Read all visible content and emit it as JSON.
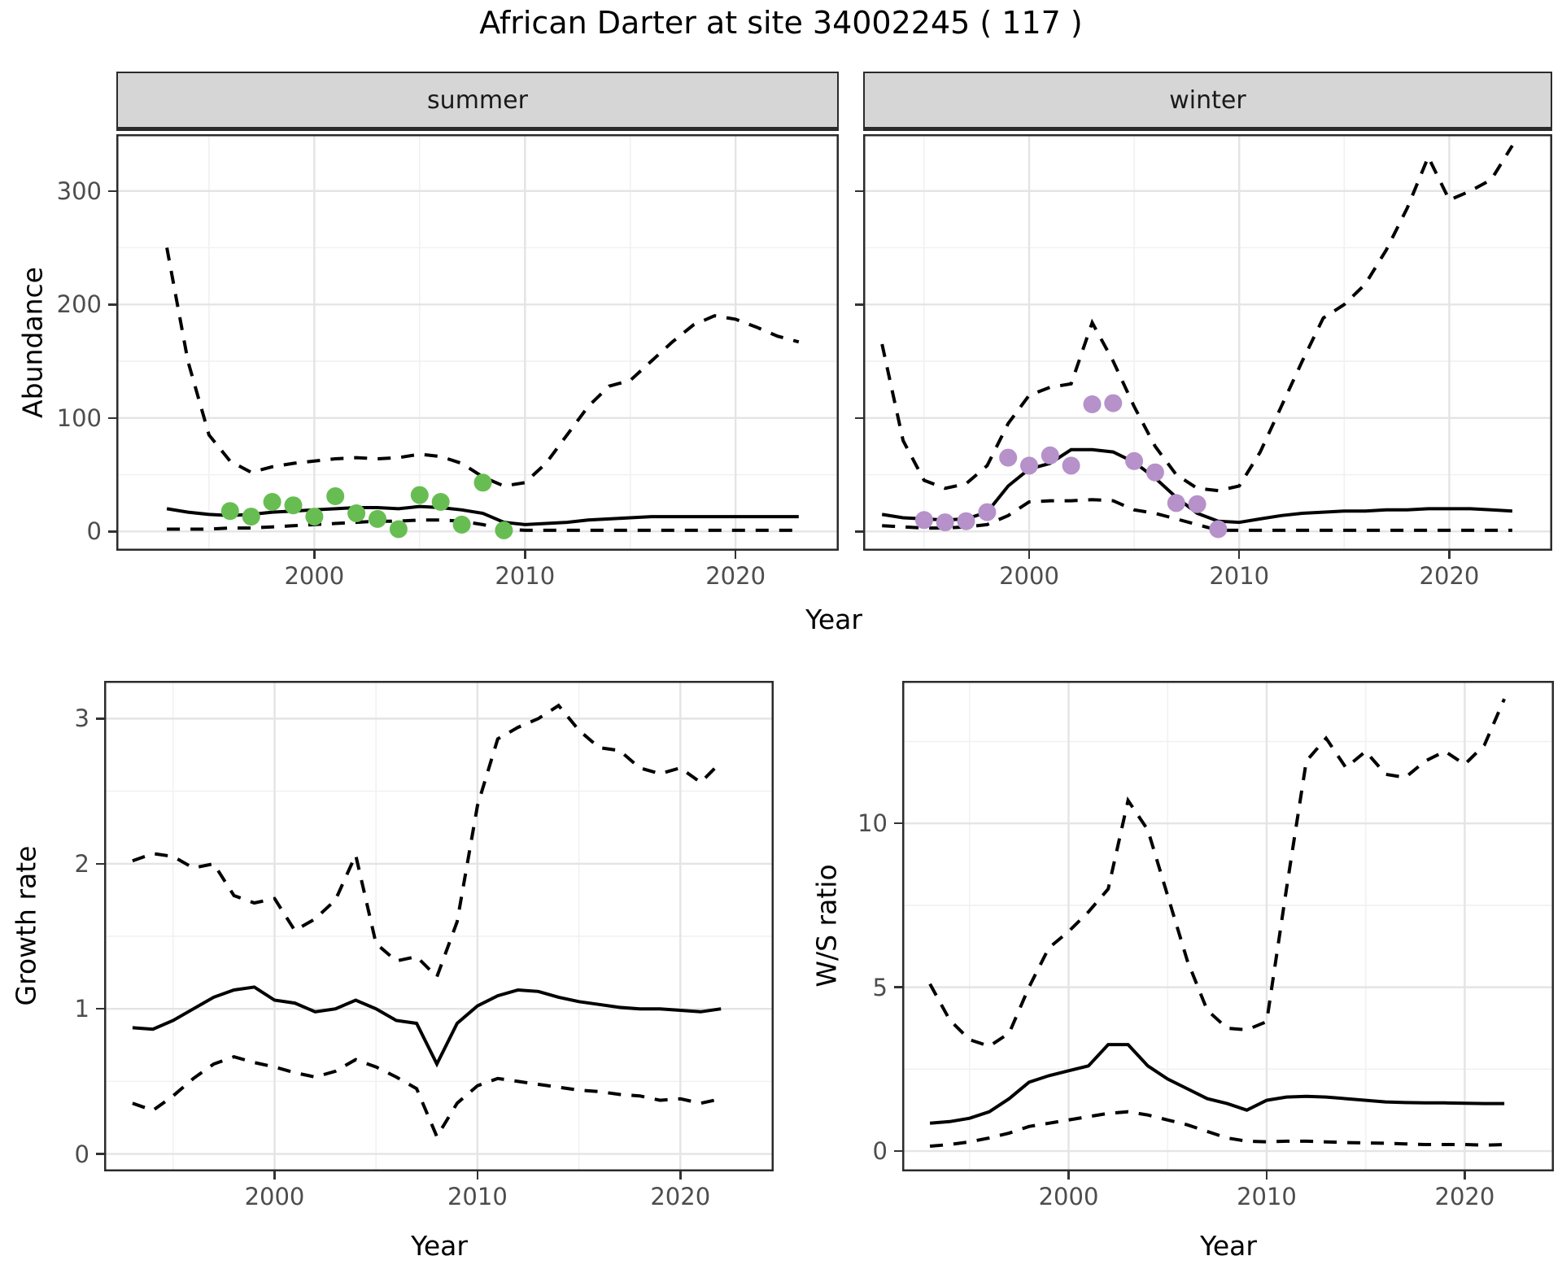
{
  "title": "African Darter at site 34002245 ( 117 )",
  "axis_titles": {
    "top_x": "Year",
    "bottom_left_x": "Year",
    "bottom_right_x": "Year",
    "top_y": "Abundance",
    "bottom_left_y": "Growth rate",
    "bottom_right_y": "W/S ratio"
  },
  "colors": {
    "summer_points": "#67bd52",
    "winter_points": "#b691ca",
    "line": "#000000",
    "strip_fill": "#d6d6d6",
    "panel_border": "#2b2b2b",
    "grid_major": "#e4e4e4",
    "grid_minor": "#f1f1f1",
    "tick_label": "#4d4d4d"
  },
  "chart_data": [
    {
      "id": "abundance_summer",
      "type": "line",
      "facet_label": "summer",
      "xlabel": "Year",
      "ylabel": "Abundance",
      "xlim": [
        1990.6,
        2024.9
      ],
      "ylim": [
        -17,
        350
      ],
      "xticks": [
        2000,
        2010,
        2020
      ],
      "xminor": [
        1995,
        2005,
        2015
      ],
      "yticks": [
        0,
        100,
        200,
        300
      ],
      "yminor": [
        50,
        150,
        250
      ],
      "years": [
        1993,
        1994,
        1995,
        1996,
        1997,
        1998,
        1999,
        2000,
        2001,
        2002,
        2003,
        2004,
        2005,
        2006,
        2007,
        2008,
        2009,
        2010,
        2011,
        2012,
        2013,
        2014,
        2015,
        2016,
        2017,
        2018,
        2019,
        2020,
        2021,
        2022,
        2023
      ],
      "series": [
        {
          "name": "upper_credible",
          "style": "dashed",
          "values": [
            250,
            150,
            85,
            62,
            52,
            57,
            60,
            62,
            64,
            65,
            64,
            65,
            68,
            66,
            60,
            48,
            40,
            43,
            60,
            85,
            110,
            128,
            133,
            150,
            167,
            182,
            190,
            187,
            180,
            172,
            167
          ]
        },
        {
          "name": "median",
          "style": "solid",
          "values": [
            20,
            17,
            15,
            14,
            15,
            17,
            18,
            19,
            20,
            21,
            21,
            20,
            22,
            21,
            19,
            16,
            8,
            6,
            7,
            8,
            10,
            11,
            12,
            13,
            13,
            13,
            13,
            13,
            13,
            13,
            13
          ]
        },
        {
          "name": "lower_credible",
          "style": "dashed",
          "values": [
            2,
            2,
            2,
            3,
            3,
            4,
            5,
            6,
            7,
            8,
            9,
            9,
            10,
            10,
            9,
            6,
            2,
            1,
            1,
            1,
            1,
            1,
            1,
            1,
            1,
            1,
            1,
            1,
            1,
            1,
            1
          ]
        }
      ],
      "points": {
        "name": "observed_counts",
        "color_key": "summer_points",
        "x": [
          1996,
          1997,
          1998,
          1999,
          2000,
          2001,
          2002,
          2003,
          2004,
          2005,
          2006,
          2007,
          2008,
          2009
        ],
        "y": [
          18,
          13,
          26,
          23,
          13,
          31,
          16,
          11,
          2,
          32,
          26,
          6,
          43,
          1
        ]
      }
    },
    {
      "id": "abundance_winter",
      "type": "line",
      "facet_label": "winter",
      "xlabel": "Year",
      "ylabel": "Abundance",
      "xlim": [
        1992.1,
        2024.9
      ],
      "ylim": [
        -17,
        350
      ],
      "xticks": [
        2000,
        2010,
        2020
      ],
      "xminor": [
        1995,
        2005,
        2015
      ],
      "yticks": [
        0,
        100,
        200,
        300
      ],
      "yminor": [
        50,
        150,
        250
      ],
      "years": [
        1993,
        1994,
        1995,
        1996,
        1997,
        1998,
        1999,
        2000,
        2001,
        2002,
        2003,
        2004,
        2005,
        2006,
        2007,
        2008,
        2009,
        2010,
        2011,
        2012,
        2013,
        2014,
        2015,
        2016,
        2017,
        2018,
        2019,
        2020,
        2021,
        2022,
        2023
      ],
      "series": [
        {
          "name": "upper_credible",
          "style": "dashed",
          "values": [
            165,
            80,
            45,
            38,
            42,
            58,
            95,
            120,
            127,
            130,
            184,
            150,
            110,
            75,
            50,
            38,
            36,
            40,
            70,
            110,
            150,
            188,
            200,
            218,
            248,
            285,
            330,
            292,
            300,
            310,
            340
          ]
        },
        {
          "name": "median",
          "style": "solid",
          "values": [
            15,
            12,
            11,
            10,
            11,
            17,
            40,
            55,
            60,
            72,
            72,
            70,
            61,
            47,
            30,
            16,
            9,
            8,
            11,
            14,
            16,
            17,
            18,
            18,
            19,
            19,
            20,
            20,
            20,
            19,
            18
          ]
        },
        {
          "name": "lower_credible",
          "style": "dashed",
          "values": [
            5,
            4,
            3,
            3,
            4,
            6,
            14,
            26,
            27,
            27,
            28,
            27,
            19,
            16,
            11,
            6,
            1,
            1,
            1,
            1,
            1,
            1,
            1,
            1,
            1,
            1,
            1,
            1,
            1,
            1,
            1
          ]
        }
      ],
      "points": {
        "name": "observed_counts",
        "color_key": "winter_points",
        "x": [
          1995,
          1996,
          1997,
          1998,
          1999,
          2000,
          2001,
          2002,
          2003,
          2004,
          2005,
          2006,
          2007,
          2008,
          2009
        ],
        "y": [
          10,
          8,
          9,
          17,
          65,
          58,
          67,
          58,
          112,
          113,
          62,
          52,
          25,
          24,
          2
        ]
      }
    },
    {
      "id": "growth_rate",
      "type": "line",
      "facet_label": "",
      "xlabel": "Year",
      "ylabel": "Growth rate",
      "xlim": [
        1991.6,
        2024.6
      ],
      "ylim": [
        -0.12,
        3.26
      ],
      "xticks": [
        2000,
        2010,
        2020
      ],
      "xminor": [
        1995,
        2005,
        2015
      ],
      "yticks": [
        0,
        1,
        2,
        3
      ],
      "yminor": [
        0.5,
        1.5,
        2.5
      ],
      "years": [
        1993,
        1994,
        1995,
        1996,
        1997,
        1998,
        1999,
        2000,
        2001,
        2002,
        2003,
        2004,
        2005,
        2006,
        2007,
        2008,
        2009,
        2010,
        2011,
        2012,
        2013,
        2014,
        2015,
        2016,
        2017,
        2018,
        2019,
        2020,
        2021,
        2022
      ],
      "series": [
        {
          "name": "upper_credible",
          "style": "dashed",
          "values": [
            2.02,
            2.07,
            2.05,
            1.97,
            2.0,
            1.78,
            1.73,
            1.76,
            1.54,
            1.62,
            1.75,
            2.06,
            1.45,
            1.33,
            1.36,
            1.22,
            1.6,
            2.4,
            2.86,
            2.94,
            3.0,
            3.09,
            2.92,
            2.8,
            2.78,
            2.66,
            2.62,
            2.66,
            2.56,
            2.7
          ]
        },
        {
          "name": "median",
          "style": "solid",
          "values": [
            0.87,
            0.86,
            0.92,
            1.0,
            1.08,
            1.13,
            1.15,
            1.06,
            1.04,
            0.98,
            1.0,
            1.06,
            1.0,
            0.92,
            0.9,
            0.62,
            0.9,
            1.02,
            1.09,
            1.13,
            1.12,
            1.08,
            1.05,
            1.03,
            1.01,
            1.0,
            1.0,
            0.99,
            0.98,
            1.0
          ]
        },
        {
          "name": "lower_credible",
          "style": "dashed",
          "values": [
            0.35,
            0.3,
            0.4,
            0.52,
            0.62,
            0.67,
            0.63,
            0.6,
            0.56,
            0.53,
            0.57,
            0.65,
            0.6,
            0.53,
            0.45,
            0.12,
            0.35,
            0.47,
            0.52,
            0.5,
            0.48,
            0.46,
            0.44,
            0.43,
            0.41,
            0.4,
            0.37,
            0.38,
            0.35,
            0.38
          ]
        }
      ],
      "points": null
    },
    {
      "id": "ws_ratio",
      "type": "line",
      "facet_label": "",
      "xlabel": "Year",
      "ylabel": "W/S ratio",
      "xlim": [
        1991.6,
        2024.5
      ],
      "ylim": [
        -0.62,
        14.35
      ],
      "xticks": [
        2000,
        2010,
        2020
      ],
      "xminor": [
        1995,
        2005,
        2015
      ],
      "yticks": [
        0,
        5,
        10
      ],
      "yminor": [
        2.5,
        7.5,
        12.5
      ],
      "years": [
        1993,
        1994,
        1995,
        1996,
        1997,
        1998,
        1999,
        2000,
        2001,
        2002,
        2003,
        2004,
        2005,
        2006,
        2007,
        2008,
        2009,
        2010,
        2011,
        2012,
        2013,
        2014,
        2015,
        2016,
        2017,
        2018,
        2019,
        2020,
        2021,
        2022
      ],
      "series": [
        {
          "name": "upper_credible",
          "style": "dashed",
          "values": [
            5.1,
            4.0,
            3.4,
            3.2,
            3.6,
            5.0,
            6.2,
            6.7,
            7.3,
            8.0,
            10.7,
            9.8,
            7.8,
            5.8,
            4.3,
            3.75,
            3.7,
            3.95,
            8.0,
            11.9,
            12.6,
            11.7,
            12.2,
            11.5,
            11.4,
            11.9,
            12.2,
            11.8,
            12.4,
            13.8
          ]
        },
        {
          "name": "median",
          "style": "solid",
          "values": [
            0.85,
            0.9,
            1.0,
            1.2,
            1.6,
            2.1,
            2.3,
            2.45,
            2.6,
            3.25,
            3.25,
            2.6,
            2.2,
            1.9,
            1.6,
            1.45,
            1.25,
            1.55,
            1.65,
            1.67,
            1.65,
            1.6,
            1.55,
            1.5,
            1.48,
            1.47,
            1.47,
            1.46,
            1.45,
            1.45
          ]
        },
        {
          "name": "lower_credible",
          "style": "dashed",
          "values": [
            0.15,
            0.2,
            0.28,
            0.4,
            0.55,
            0.75,
            0.85,
            0.95,
            1.05,
            1.15,
            1.2,
            1.1,
            0.95,
            0.8,
            0.6,
            0.4,
            0.3,
            0.28,
            0.3,
            0.3,
            0.28,
            0.26,
            0.25,
            0.24,
            0.22,
            0.2,
            0.2,
            0.2,
            0.18,
            0.2
          ]
        }
      ],
      "points": null
    }
  ]
}
